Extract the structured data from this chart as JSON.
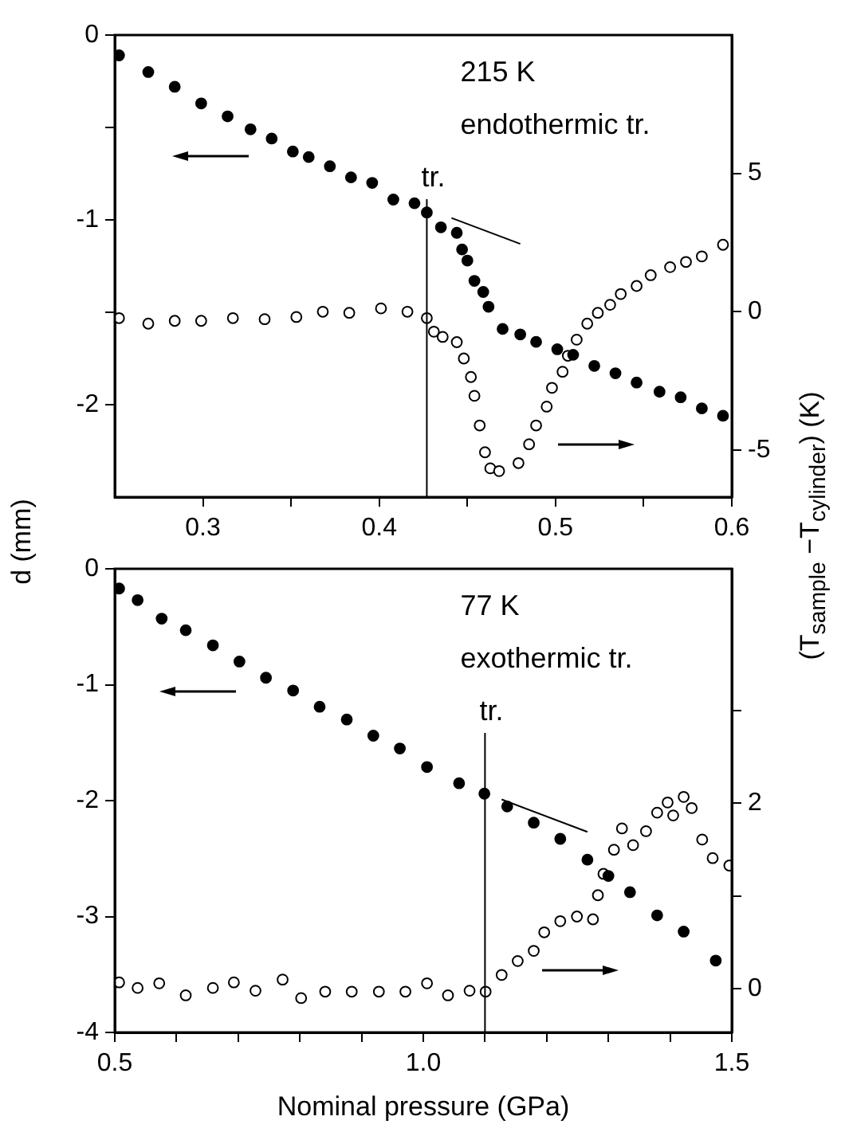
{
  "chart_data": [
    {
      "type": "scatter",
      "ylabel": "d (mm)",
      "y2label": "(T$_{sample}$ −T$_{cylinder}$) (K)",
      "marker": "circle",
      "legend": false,
      "grid": false,
      "annotations": [
        "215 K",
        "endothermic tr."
      ],
      "xlim": [
        0.25,
        0.6
      ],
      "xticks": [
        0.3,
        {
          "value": 0.35,
          "label": null
        },
        0.4,
        {
          "value": 0.45,
          "label": null
        },
        0.5,
        {
          "value": 0.55,
          "label": null
        },
        0.6
      ],
      "ylim": [
        -2.5,
        0
      ],
      "yticks": [
        0,
        {
          "value": -0.5,
          "label": null
        },
        -1,
        {
          "value": -1.5,
          "label": null
        },
        -2
      ],
      "y2lim": [
        -6.7,
        10
      ],
      "y2ticks": [
        -5,
        0,
        5
      ],
      "ref_lines": [
        {
          "axis": "x",
          "value": 0.427,
          "color": "#000000",
          "label": "tr."
        }
      ],
      "series": [
        {
          "color": "#000000",
          "axis": "y",
          "x": [
            0.2524,
            0.269,
            0.284,
            0.299,
            0.314,
            0.327,
            0.339,
            0.351,
            0.36,
            0.372,
            0.384,
            0.396,
            0.408,
            0.42,
            0.427,
            0.435,
            0.444,
            0.447,
            0.45,
            0.454,
            0.459,
            0.462,
            0.47,
            0.48,
            0.489,
            0.501,
            0.51,
            0.522,
            0.534,
            0.546,
            0.559,
            0.571,
            0.583,
            0.595
          ],
          "values": [
            -0.11,
            -0.2,
            -0.28,
            -0.37,
            -0.44,
            -0.51,
            -0.56,
            -0.63,
            -0.66,
            -0.71,
            -0.77,
            -0.8,
            -0.89,
            -0.91,
            -0.96,
            -1.04,
            -1.07,
            -1.16,
            -1.22,
            -1.33,
            -1.39,
            -1.47,
            -1.59,
            -1.62,
            -1.66,
            -1.7,
            -1.73,
            -1.79,
            -1.83,
            -1.88,
            -1.93,
            -1.96,
            -2.02,
            -2.06
          ]
        },
        {
          "color": "#000000",
          "axis": "y2",
          "x": [
            0.2524,
            0.269,
            0.284,
            0.299,
            0.317,
            0.335,
            0.353,
            0.368,
            0.383,
            0.401,
            0.416,
            0.427,
            0.431,
            0.436,
            0.444,
            0.448,
            0.452,
            0.454,
            0.457,
            0.46,
            0.463,
            0.468,
            0.479,
            0.485,
            0.489,
            0.495,
            0.498,
            0.504,
            0.507,
            0.512,
            0.518,
            0.524,
            0.531,
            0.537,
            0.546,
            0.554,
            0.565,
            0.574,
            0.583,
            0.595
          ],
          "values": [
            -0.23,
            -0.43,
            -0.33,
            -0.33,
            -0.23,
            -0.27,
            -0.19,
            0,
            -0.04,
            0.12,
            0,
            -0.23,
            -0.72,
            -0.91,
            -1.1,
            -1.69,
            -2.36,
            -3.04,
            -4.11,
            -5.08,
            -5.66,
            -5.76,
            -5.47,
            -4.79,
            -4.11,
            -3.43,
            -2.75,
            -2.17,
            -1.59,
            -1.01,
            -0.43,
            -0.04,
            0.25,
            0.64,
            0.93,
            1.32,
            1.61,
            1.8,
            2.0,
            2.42
          ]
        },
        {
          "type": "line",
          "color": "#000000",
          "axis": "y",
          "marker": "none",
          "x": [
            0.441,
            0.48
          ],
          "values": [
            -0.99,
            -1.13
          ]
        }
      ]
    },
    {
      "type": "scatter",
      "xlabel": "Nominal pressure (GPa)",
      "marker": "circle",
      "legend": false,
      "grid": false,
      "annotations": [
        "77 K",
        "exothermic tr."
      ],
      "xlim": [
        0.5,
        1.5
      ],
      "xticks": [
        0.5,
        {
          "value": 0.6,
          "label": null
        },
        {
          "value": 0.7,
          "label": null
        },
        {
          "value": 0.8,
          "label": null
        },
        {
          "value": 0.9,
          "label": null
        },
        {
          "value": 1,
          "label": "1.0"
        },
        {
          "value": 1.1,
          "label": null
        },
        {
          "value": 1.2,
          "label": null
        },
        {
          "value": 1.3,
          "label": null
        },
        {
          "value": 1.4,
          "label": null
        },
        1.5
      ],
      "ylim": [
        -4,
        0
      ],
      "yticks": [
        0,
        -1,
        -2,
        -3,
        -4
      ],
      "y2lim": [
        -0.47,
        4.53
      ],
      "y2ticks": [
        0,
        {
          "value": 1,
          "label": null
        },
        2,
        {
          "value": 3,
          "label": null
        }
      ],
      "ref_lines": [
        {
          "axis": "x",
          "value": 1.1,
          "color": "#000000",
          "label": "tr."
        }
      ],
      "series": [
        {
          "color": "#000000",
          "axis": "y",
          "x": [
            0.507,
            0.537,
            0.576,
            0.615,
            0.659,
            0.702,
            0.745,
            0.789,
            0.832,
            0.876,
            0.919,
            0.962,
            1.006,
            1.058,
            1.099,
            1.136,
            1.179,
            1.222,
            1.266,
            1.3,
            1.335,
            1.379,
            1.422,
            1.474
          ],
          "values": [
            -0.17,
            -0.27,
            -0.43,
            -0.53,
            -0.66,
            -0.8,
            -0.94,
            -1.05,
            -1.19,
            -1.3,
            -1.44,
            -1.55,
            -1.71,
            -1.85,
            -1.94,
            -2.05,
            -2.19,
            -2.33,
            -2.51,
            -2.65,
            -2.79,
            -2.99,
            -3.13,
            -3.38
          ]
        },
        {
          "color": "#000000",
          "axis": "y2",
          "x": [
            0.507,
            0.537,
            0.572,
            0.615,
            0.659,
            0.693,
            0.728,
            0.772,
            0.802,
            0.841,
            0.884,
            0.928,
            0.971,
            1.006,
            1.04,
            1.075,
            1.101,
            1.127,
            1.153,
            1.179,
            1.196,
            1.222,
            1.249,
            1.275,
            1.283,
            1.292,
            1.309,
            1.322,
            1.34,
            1.361,
            1.379,
            1.396,
            1.405,
            1.422,
            1.435,
            1.452,
            1.469,
            1.496
          ],
          "values": [
            0.07,
            0.01,
            0.06,
            -0.07,
            0.01,
            0.07,
            -0.02,
            0.1,
            -0.1,
            -0.03,
            -0.03,
            -0.03,
            -0.03,
            0.06,
            -0.07,
            -0.02,
            -0.03,
            0.15,
            0.3,
            0.41,
            0.61,
            0.73,
            0.78,
            0.75,
            1.01,
            1.24,
            1.5,
            1.73,
            1.55,
            1.7,
            1.9,
            2.01,
            1.87,
            2.07,
            1.95,
            1.61,
            1.41,
            1.33
          ]
        },
        {
          "type": "line",
          "color": "#000000",
          "axis": "y",
          "marker": "none",
          "x": [
            1.127,
            1.266
          ],
          "values": [
            -1.99,
            -2.27
          ]
        }
      ]
    }
  ]
}
